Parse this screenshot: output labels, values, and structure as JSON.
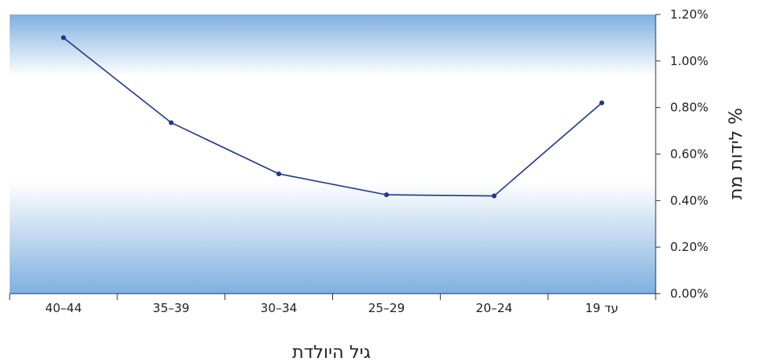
{
  "chart_data": {
    "type": "line",
    "categories": [
      "40–44",
      "35–39",
      "30–34",
      "25–29",
      "20–24",
      "עד 19"
    ],
    "series": [
      {
        "values": [
          1.1,
          0.735,
          0.515,
          0.425,
          0.42,
          0.82
        ]
      }
    ],
    "xlabel": "גיל היולדת",
    "ylabel": "% לידות מת",
    "ylim": [
      0,
      1.2
    ],
    "yticks": [
      "0.00%",
      "0.20%",
      "0.40%",
      "0.60%",
      "0.80%",
      "1.00%",
      "1.20%"
    ],
    "y_axis_position": "right",
    "grid": false,
    "legend": "none",
    "colors": {
      "line": "#1f3a8a",
      "marker": "#1f3a8a",
      "plot_gradient_edge": "#7fb0e0",
      "plot_gradient_center": "#ffffff",
      "axis": "#333333"
    }
  }
}
